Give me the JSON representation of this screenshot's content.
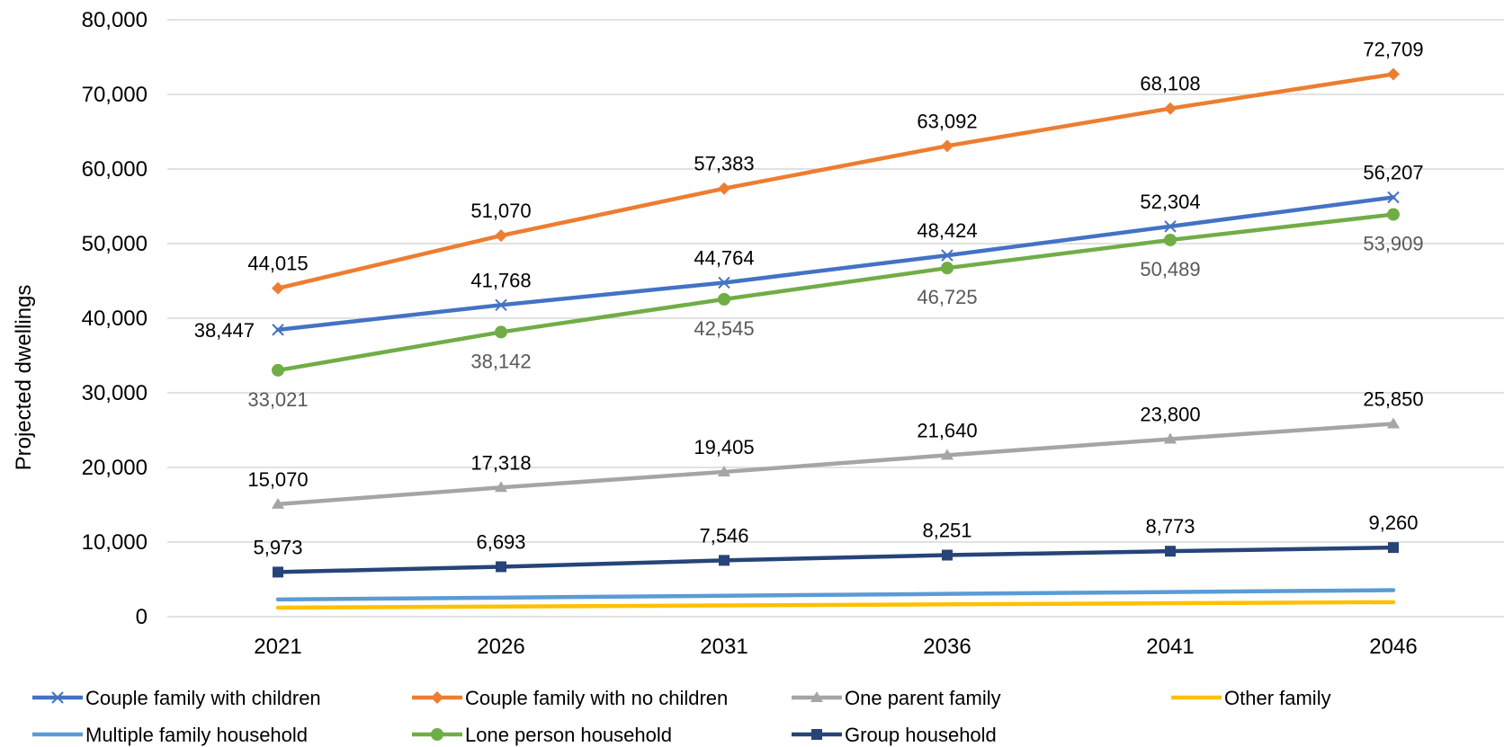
{
  "chart_data": {
    "type": "line",
    "title": "",
    "xlabel": "",
    "ylabel": "Projected dwellings",
    "x": [
      "2021",
      "2026",
      "2031",
      "2036",
      "2041",
      "2046"
    ],
    "ylim": [
      0,
      80000
    ],
    "yticks": [
      "0",
      "10,000",
      "20,000",
      "30,000",
      "40,000",
      "50,000",
      "60,000",
      "70,000",
      "80,000"
    ],
    "grid": true,
    "legend_position": "bottom",
    "series": [
      {
        "name": "Couple family with children",
        "color": "#4472C4",
        "marker": "x",
        "values": [
          38447,
          41768,
          44764,
          48424,
          52304,
          56207
        ],
        "labels": [
          "38,447",
          "41,768",
          "44,764",
          "48,424",
          "52,304",
          "56,207"
        ]
      },
      {
        "name": "Couple family with no children",
        "color": "#ED7D31",
        "marker": "diamond",
        "values": [
          44015,
          51070,
          57383,
          63092,
          68108,
          72709
        ],
        "labels": [
          "44,015",
          "51,070",
          "57,383",
          "63,092",
          "68,108",
          "72,709"
        ]
      },
      {
        "name": "One parent family",
        "color": "#A5A5A5",
        "marker": "triangle",
        "values": [
          15070,
          17318,
          19405,
          21640,
          23800,
          25850
        ],
        "labels": [
          "15,070",
          "17,318",
          "19,405",
          "21,640",
          "23,800",
          "25,850"
        ]
      },
      {
        "name": "Other family",
        "color": "#FFC000",
        "marker": "none",
        "values": [
          1200,
          1350,
          1500,
          1650,
          1800,
          1950
        ],
        "labels": []
      },
      {
        "name": "Multiple family household",
        "color": "#5B9BD5",
        "marker": "none",
        "values": [
          2300,
          2550,
          2800,
          3050,
          3300,
          3550
        ],
        "labels": []
      },
      {
        "name": "Lone person household",
        "color": "#70AD47",
        "marker": "circle",
        "values": [
          33021,
          38142,
          42545,
          46725,
          50489,
          53909
        ],
        "labels": [
          "33,021",
          "38,142",
          "42,545",
          "46,725",
          "50,489",
          "53,909"
        ]
      },
      {
        "name": "Group household",
        "color": "#264478",
        "marker": "square",
        "values": [
          5973,
          6693,
          7546,
          8251,
          8773,
          9260
        ],
        "labels": [
          "5,973",
          "6,693",
          "7,546",
          "8,251",
          "8,773",
          "9,260"
        ]
      }
    ]
  }
}
